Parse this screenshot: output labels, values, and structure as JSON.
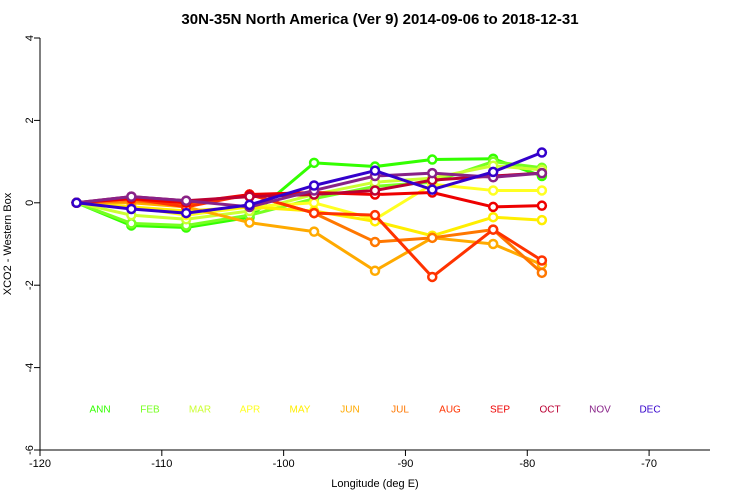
{
  "chart_data": {
    "type": "line",
    "title": "30N-35N North America (Ver 9)   2014-09-06 to 2018-12-31",
    "xlabel": "Longitude (deg E)",
    "ylabel": "XCO2 - Western Box",
    "x": [
      -117,
      -112.5,
      -108,
      -102.8,
      -97.5,
      -92.5,
      -87.8,
      -82.8,
      -78.8
    ],
    "xlim": [
      -120,
      -65
    ],
    "xticks": [
      -120,
      -110,
      -100,
      -90,
      -80,
      -70
    ],
    "ylim": [
      -6,
      4
    ],
    "yticks": [
      -6,
      -4,
      -2,
      0,
      2,
      4
    ],
    "series": [
      {
        "name": "ANN",
        "color": "#33ff00",
        "values": [
          0,
          -0.55,
          -0.6,
          -0.35,
          0.97,
          0.88,
          1.05,
          1.07,
          0.65
        ]
      },
      {
        "name": "FEB",
        "color": "#77ff22",
        "values": [
          0,
          -0.5,
          -0.55,
          -0.3,
          0.1,
          0.4,
          0.5,
          1.0,
          0.85
        ]
      },
      {
        "name": "MAR",
        "color": "#ccff33",
        "values": [
          0,
          -0.3,
          -0.4,
          -0.2,
          0.2,
          0.5,
          0.6,
          0.9,
          0.8
        ]
      },
      {
        "name": "APR",
        "color": "#ffff22",
        "values": [
          0,
          -0.1,
          -0.3,
          -0.1,
          0.0,
          -0.4,
          0.45,
          0.3,
          0.3
        ]
      },
      {
        "name": "MAY",
        "color": "#ffee00",
        "values": [
          0,
          -0.1,
          -0.2,
          -0.1,
          -0.2,
          -0.45,
          -0.8,
          -0.35,
          -0.42
        ]
      },
      {
        "name": "JUN",
        "color": "#ffaa00",
        "values": [
          0,
          0.0,
          -0.1,
          -0.48,
          -0.7,
          -1.65,
          -0.85,
          -1.0,
          -1.5
        ]
      },
      {
        "name": "JUL",
        "color": "#ff7700",
        "values": [
          0,
          0.05,
          -0.05,
          0.2,
          -0.25,
          -0.95,
          -0.85,
          -0.65,
          -1.7
        ]
      },
      {
        "name": "AUG",
        "color": "#ff3300",
        "values": [
          0,
          0.1,
          -0.1,
          0.2,
          -0.25,
          -0.3,
          -1.8,
          -0.65,
          -1.4
        ]
      },
      {
        "name": "SEP",
        "color": "#ee0000",
        "values": [
          0,
          0.1,
          0.0,
          0.2,
          0.25,
          0.2,
          0.25,
          -0.1,
          -0.07
        ]
      },
      {
        "name": "OCT",
        "color": "#bb0033",
        "values": [
          0,
          0.15,
          0.05,
          0.15,
          0.2,
          0.3,
          0.55,
          0.65,
          0.72
        ]
      },
      {
        "name": "NOV",
        "color": "#882288",
        "values": [
          0,
          0.15,
          0.05,
          -0.1,
          0.3,
          0.65,
          0.72,
          0.62,
          0.72
        ]
      },
      {
        "name": "DEC",
        "color": "#3300cc",
        "values": [
          0,
          -0.15,
          -0.25,
          -0.05,
          0.42,
          0.78,
          0.32,
          0.75,
          1.22
        ]
      }
    ]
  }
}
